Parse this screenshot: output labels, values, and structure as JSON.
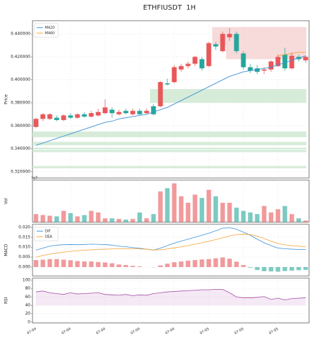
{
  "chart_data": [
    {
      "type": "candlestick",
      "title": "ETHFIUSDT  1H",
      "ylabel": "Price",
      "up_color": "#e8575a",
      "down_color": "#26a69a",
      "grid": true,
      "legend": "upper left",
      "categories": [
        "07-04",
        null,
        null,
        null,
        null,
        "07-04",
        null,
        null,
        null,
        null,
        "07-04",
        null,
        null,
        null,
        null,
        "07-04",
        null,
        null,
        null,
        null,
        "07-04",
        null,
        null,
        null,
        null,
        "07-05",
        null,
        null,
        null,
        null,
        "07-05",
        null,
        null,
        null,
        null,
        "07-05",
        null,
        null,
        null,
        null
      ],
      "ohlc": {
        "open": [
          0.359,
          0.366,
          0.366,
          0.367,
          0.365,
          0.369,
          0.367,
          0.37,
          0.368,
          0.369,
          0.371,
          0.374,
          0.37,
          0.373,
          0.37,
          0.373,
          0.371,
          0.377,
          0.377,
          0.397,
          0.398,
          0.409,
          0.412,
          0.414,
          0.418,
          0.412,
          0.431,
          0.425,
          0.437,
          0.44,
          0.423,
          0.411,
          0.41,
          0.408,
          0.409,
          0.412,
          0.422,
          0.41,
          0.42,
          0.417
        ],
        "high": [
          0.367,
          0.371,
          0.371,
          0.369,
          0.37,
          0.371,
          0.371,
          0.372,
          0.373,
          0.375,
          0.383,
          0.376,
          0.374,
          0.375,
          0.375,
          0.375,
          0.375,
          0.379,
          0.399,
          0.401,
          0.413,
          0.414,
          0.416,
          0.421,
          0.42,
          0.433,
          0.433,
          0.442,
          0.445,
          0.442,
          0.425,
          0.414,
          0.413,
          0.411,
          0.417,
          0.422,
          0.428,
          0.424,
          0.422,
          0.421
        ],
        "low": [
          0.358,
          0.364,
          0.365,
          0.364,
          0.364,
          0.366,
          0.366,
          0.367,
          0.367,
          0.368,
          0.37,
          0.367,
          0.369,
          0.37,
          0.369,
          0.369,
          0.37,
          0.369,
          0.376,
          0.395,
          0.397,
          0.407,
          0.41,
          0.412,
          0.408,
          0.411,
          0.426,
          0.424,
          0.434,
          0.423,
          0.409,
          0.406,
          0.405,
          0.405,
          0.407,
          0.411,
          0.408,
          0.409,
          0.416,
          0.415
        ],
        "close": [
          0.366,
          0.37,
          0.37,
          0.365,
          0.369,
          0.367,
          0.37,
          0.368,
          0.371,
          0.372,
          0.376,
          0.371,
          0.372,
          0.371,
          0.373,
          0.37,
          0.373,
          0.37,
          0.398,
          0.396,
          0.411,
          0.412,
          0.414,
          0.42,
          0.41,
          0.432,
          0.429,
          0.44,
          0.44,
          0.425,
          0.411,
          0.408,
          0.407,
          0.409,
          0.416,
          0.42,
          0.41,
          0.421,
          0.418,
          0.42
        ]
      },
      "series": [
        {
          "name": "MA20",
          "color": "#3a8fd6",
          "values": [
            0.343,
            0.345,
            0.347,
            0.349,
            0.351,
            0.353,
            0.355,
            0.357,
            0.359,
            0.361,
            0.363,
            0.364,
            0.366,
            0.367,
            0.368,
            0.369,
            0.37,
            0.372,
            0.374,
            0.376,
            0.379,
            0.382,
            0.385,
            0.388,
            0.391,
            0.394,
            0.397,
            0.4,
            0.403,
            0.405,
            0.407,
            0.408,
            0.409,
            0.41,
            0.411,
            0.413,
            0.415,
            0.417,
            0.419,
            0.421
          ]
        },
        {
          "name": "MA60",
          "color": "#f5a030",
          "values": [
            null,
            null,
            null,
            null,
            null,
            null,
            null,
            null,
            null,
            null,
            null,
            null,
            null,
            null,
            null,
            null,
            null,
            null,
            null,
            null,
            null,
            null,
            null,
            null,
            null,
            null,
            null,
            null,
            null,
            null,
            null,
            null,
            null,
            null,
            null,
            0.421,
            0.422,
            0.423,
            0.424,
            0.424
          ]
        }
      ],
      "zones": [
        {
          "y0": 0.38,
          "y1": 0.392,
          "x0": 17,
          "color": "#cfe9d2"
        },
        {
          "y0": 0.35,
          "y1": 0.355,
          "x0": 0,
          "color": "#cfe9d2"
        },
        {
          "y0": 0.343,
          "y1": 0.346,
          "x0": 0,
          "color": "#cfe9d2"
        },
        {
          "y0": 0.3395,
          "y1": 0.341,
          "x0": 0,
          "color": "#cfe9d2"
        },
        {
          "y0": 0.337,
          "y1": 0.339,
          "x0": 0,
          "color": "#cfe9d2"
        },
        {
          "y0": 0.323,
          "y1": 0.325,
          "x0": 0,
          "color": "#cfe9d2"
        },
        {
          "y0": 0.43,
          "y1": 0.446,
          "x0": 26,
          "color": "#f6d3d3"
        },
        {
          "y0": 0.418,
          "y1": 0.43,
          "x0": 28,
          "color": "#f6d3d3"
        }
      ],
      "ylim": [
        0.3145,
        0.4515
      ],
      "yticks": [
        {
          "value": 0.32,
          "label": "0.320000"
        },
        {
          "value": 0.34,
          "label": "0.340000"
        },
        {
          "value": 0.36,
          "label": "0.360000"
        },
        {
          "value": 0.38,
          "label": "0.380000"
        },
        {
          "value": 0.4,
          "label": "0.400000"
        },
        {
          "value": 0.42,
          "label": "0.420000"
        },
        {
          "value": 0.44,
          "label": "0.440000"
        }
      ]
    },
    {
      "type": "bar",
      "ylabel": "Vol",
      "offset_label": "1e7",
      "grid": true,
      "values": [
        0.25,
        0.22,
        0.2,
        0.18,
        0.35,
        0.28,
        0.18,
        0.22,
        0.35,
        0.3,
        0.12,
        0.12,
        0.1,
        0.08,
        0.1,
        0.3,
        0.12,
        0.25,
        0.95,
        1.05,
        1.2,
        0.8,
        0.6,
        0.85,
        0.75,
        1.0,
        0.8,
        0.6,
        0.6,
        0.45,
        0.35,
        0.3,
        0.25,
        0.5,
        0.3,
        0.4,
        0.5,
        0.25,
        0.12,
        0.05
      ],
      "ylim": [
        0,
        1.3
      ],
      "yticks": []
    },
    {
      "type": "macd",
      "ylabel": "MACD",
      "grid": true,
      "legend": "upper left",
      "series": [
        {
          "name": "DIF",
          "color": "#3a8fd6",
          "values": [
            0.0085,
            0.0095,
            0.0105,
            0.011,
            0.0112,
            0.0113,
            0.0112,
            0.0113,
            0.0115,
            0.0114,
            0.0113,
            0.011,
            0.0105,
            0.0102,
            0.0098,
            0.0094,
            0.009,
            0.0085,
            0.0095,
            0.0108,
            0.012,
            0.013,
            0.014,
            0.015,
            0.016,
            0.017,
            0.0182,
            0.0195,
            0.0198,
            0.019,
            0.0175,
            0.016,
            0.014,
            0.0122,
            0.0108,
            0.0095,
            0.0092,
            0.009,
            0.0089,
            0.0088
          ]
        },
        {
          "name": "DEA",
          "color": "#f5a030",
          "values": [
            0.005,
            0.0058,
            0.0065,
            0.007,
            0.0075,
            0.0079,
            0.0082,
            0.0085,
            0.0087,
            0.0089,
            0.009,
            0.0091,
            0.0092,
            0.0092,
            0.0092,
            0.0091,
            0.009,
            0.0086,
            0.0087,
            0.0091,
            0.0096,
            0.0102,
            0.0108,
            0.0115,
            0.0122,
            0.013,
            0.0138,
            0.0147,
            0.0156,
            0.0163,
            0.0165,
            0.0163,
            0.0155,
            0.0143,
            0.013,
            0.0118,
            0.0112,
            0.0108,
            0.0105,
            0.0102
          ]
        }
      ],
      "histogram": [
        0.0035,
        0.0037,
        0.004,
        0.004,
        0.0037,
        0.0034,
        0.003,
        0.0028,
        0.0028,
        0.0025,
        0.0023,
        0.0019,
        0.0013,
        0.001,
        0.0006,
        0.0003,
        0.0,
        -0.0001,
        0.0008,
        0.0017,
        0.0024,
        0.0028,
        0.0032,
        0.0035,
        0.0038,
        0.004,
        0.0044,
        0.0048,
        0.0042,
        0.0027,
        0.001,
        -0.0003,
        -0.0015,
        -0.0021,
        -0.0022,
        -0.0023,
        -0.002,
        -0.0018,
        -0.0016,
        -0.0014
      ],
      "ylim": [
        -0.0045,
        0.0215
      ],
      "yticks": [
        {
          "value": 0,
          "label": "0.000"
        },
        {
          "value": 0.005,
          "label": "0.005"
        },
        {
          "value": 0.01,
          "label": "0.010"
        },
        {
          "value": 0.015,
          "label": "0.015"
        },
        {
          "value": 0.02,
          "label": "0.020"
        }
      ]
    },
    {
      "type": "line",
      "ylabel": "RSI",
      "color": "#a64ca6",
      "grid": true,
      "values": [
        72,
        74,
        70,
        68,
        66,
        70,
        67,
        68,
        69,
        70,
        66,
        65,
        64,
        66,
        63,
        65,
        64,
        68,
        70,
        72,
        73,
        74,
        75,
        76,
        77,
        77,
        78,
        78,
        70,
        60,
        58,
        58,
        59,
        61,
        54,
        57,
        53,
        56,
        57,
        58
      ],
      "ylim": [
        -2,
        105
      ],
      "yticks": [
        0,
        20,
        40,
        60,
        80,
        100
      ]
    }
  ]
}
